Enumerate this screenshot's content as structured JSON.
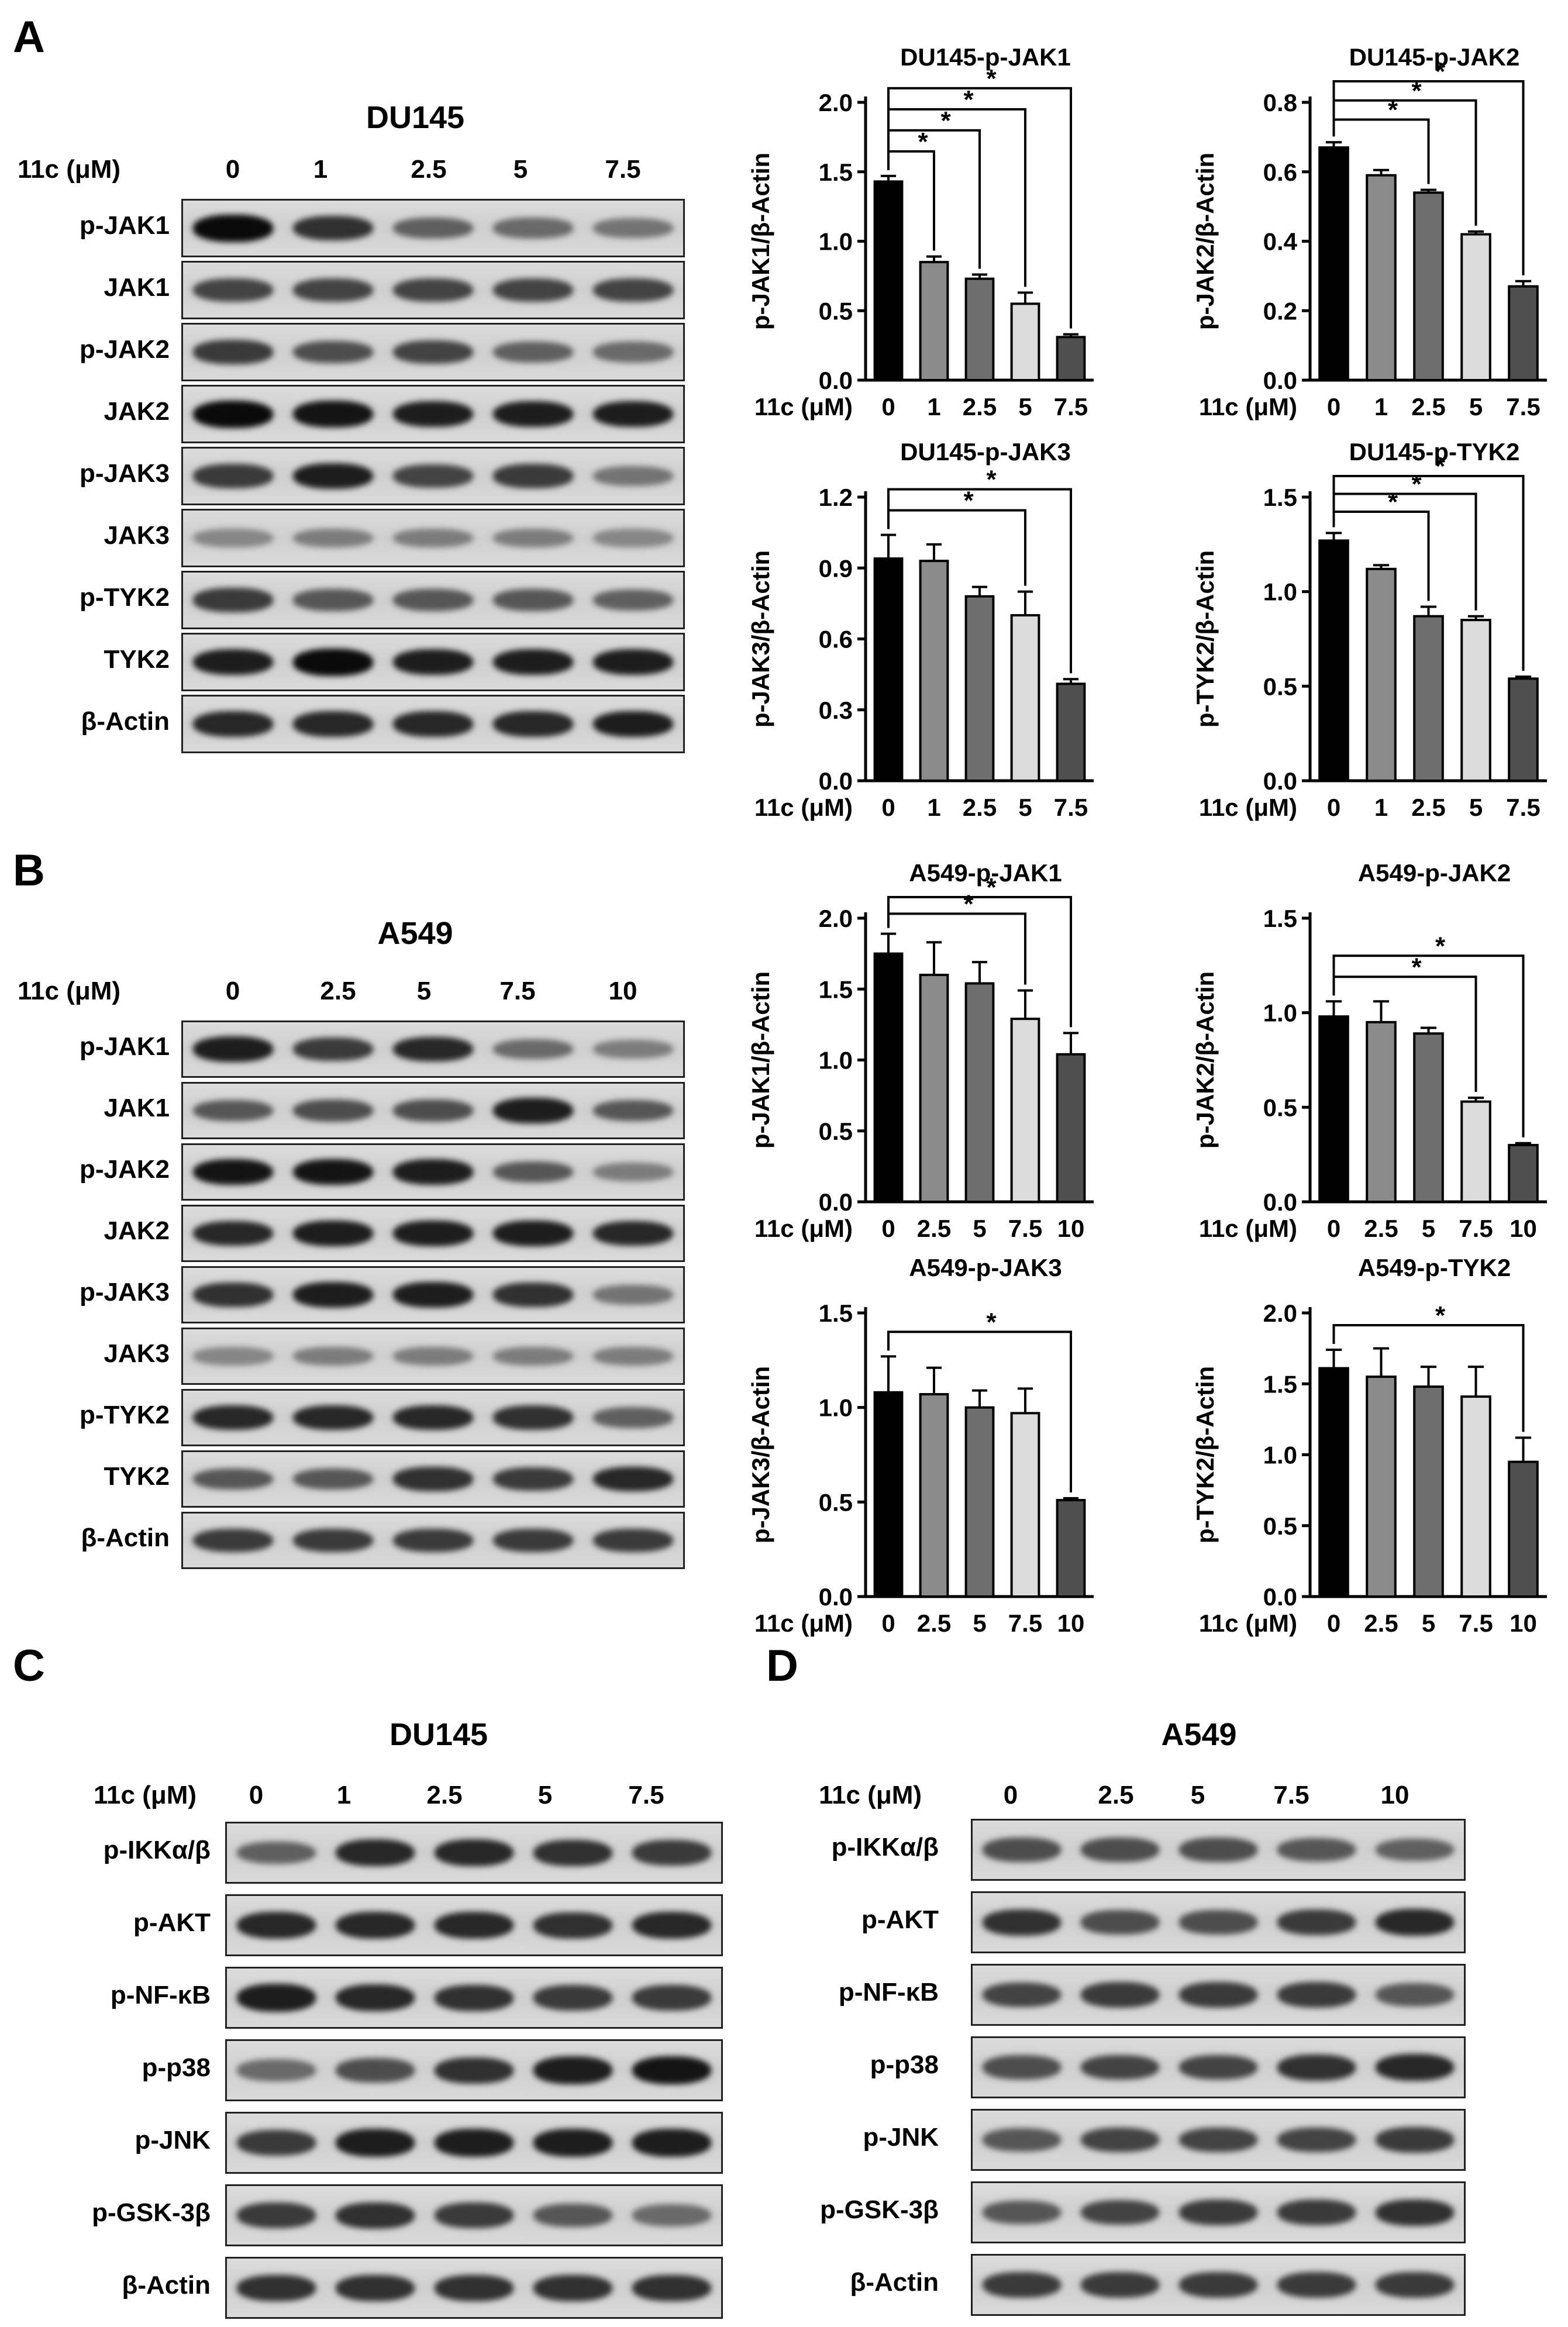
{
  "panels": {
    "A": {
      "letter": "A",
      "cell_line": "DU145",
      "dose_label": "11c (μM)",
      "doses": [
        "0",
        "1",
        "2.5",
        "5",
        "7.5"
      ],
      "blots": [
        {
          "label": "p-JAK1",
          "intensities": [
            1.0,
            0.8,
            0.55,
            0.5,
            0.45
          ]
        },
        {
          "label": "JAK1",
          "intensities": [
            0.7,
            0.7,
            0.7,
            0.7,
            0.7
          ]
        },
        {
          "label": "p-JAK2",
          "intensities": [
            0.75,
            0.65,
            0.7,
            0.55,
            0.5
          ]
        },
        {
          "label": "JAK2",
          "intensities": [
            1.0,
            0.95,
            0.9,
            0.9,
            0.9
          ]
        },
        {
          "label": "p-JAK3",
          "intensities": [
            0.75,
            0.9,
            0.7,
            0.75,
            0.45
          ]
        },
        {
          "label": "JAK3",
          "intensities": [
            0.35,
            0.4,
            0.4,
            0.4,
            0.35
          ]
        },
        {
          "label": "p-TYK2",
          "intensities": [
            0.75,
            0.6,
            0.6,
            0.6,
            0.55
          ]
        },
        {
          "label": "TYK2",
          "intensities": [
            0.9,
            1.0,
            0.9,
            0.9,
            0.9
          ]
        },
        {
          "label": "β-Actin",
          "intensities": [
            0.85,
            0.85,
            0.85,
            0.85,
            0.9
          ]
        }
      ]
    },
    "B": {
      "letter": "B",
      "cell_line": "A549",
      "dose_label": "11c (μM)",
      "doses": [
        "0",
        "2.5",
        "5",
        "7.5",
        "10"
      ],
      "blots": [
        {
          "label": "p-JAK1",
          "intensities": [
            0.9,
            0.75,
            0.85,
            0.5,
            0.4
          ]
        },
        {
          "label": "JAK1",
          "intensities": [
            0.6,
            0.65,
            0.65,
            0.9,
            0.6
          ]
        },
        {
          "label": "p-JAK2",
          "intensities": [
            0.95,
            0.95,
            0.9,
            0.6,
            0.4
          ]
        },
        {
          "label": "JAK2",
          "intensities": [
            0.85,
            0.9,
            0.9,
            0.9,
            0.85
          ]
        },
        {
          "label": "p-JAK3",
          "intensities": [
            0.8,
            0.9,
            0.9,
            0.8,
            0.45
          ]
        },
        {
          "label": "JAK3",
          "intensities": [
            0.35,
            0.4,
            0.4,
            0.4,
            0.4
          ]
        },
        {
          "label": "p-TYK2",
          "intensities": [
            0.85,
            0.85,
            0.85,
            0.8,
            0.55
          ]
        },
        {
          "label": "TYK2",
          "intensities": [
            0.6,
            0.6,
            0.8,
            0.75,
            0.85
          ]
        },
        {
          "label": "β-Actin",
          "intensities": [
            0.75,
            0.75,
            0.75,
            0.75,
            0.75
          ]
        }
      ]
    },
    "C": {
      "letter": "C",
      "cell_line": "DU145",
      "dose_label": "11c (μM)",
      "doses": [
        "0",
        "1",
        "2.5",
        "5",
        "7.5"
      ],
      "blots": [
        {
          "label": "p-IKKα/β",
          "intensities": [
            0.55,
            0.85,
            0.85,
            0.8,
            0.75
          ]
        },
        {
          "label": "p-AKT",
          "intensities": [
            0.85,
            0.85,
            0.85,
            0.8,
            0.85
          ]
        },
        {
          "label": "p-NF-κB",
          "intensities": [
            0.9,
            0.85,
            0.8,
            0.75,
            0.75
          ]
        },
        {
          "label": "p-p38",
          "intensities": [
            0.5,
            0.65,
            0.8,
            0.9,
            0.95
          ]
        },
        {
          "label": "p-JNK",
          "intensities": [
            0.75,
            0.9,
            0.9,
            0.9,
            0.9
          ]
        },
        {
          "label": "p-GSK-3β",
          "intensities": [
            0.75,
            0.8,
            0.75,
            0.6,
            0.5
          ]
        },
        {
          "label": "β-Actin",
          "intensities": [
            0.8,
            0.8,
            0.8,
            0.8,
            0.8
          ]
        }
      ]
    },
    "D": {
      "letter": "D",
      "cell_line": "A549",
      "dose_label": "11c (μM)",
      "doses": [
        "0",
        "2.5",
        "5",
        "7.5",
        "10"
      ],
      "blots": [
        {
          "label": "p-IKKα/β",
          "intensities": [
            0.65,
            0.65,
            0.65,
            0.6,
            0.55
          ]
        },
        {
          "label": "p-AKT",
          "intensities": [
            0.8,
            0.65,
            0.65,
            0.75,
            0.85
          ]
        },
        {
          "label": "p-NF-κB",
          "intensities": [
            0.7,
            0.75,
            0.75,
            0.75,
            0.6
          ]
        },
        {
          "label": "p-p38",
          "intensities": [
            0.65,
            0.7,
            0.7,
            0.8,
            0.85
          ]
        },
        {
          "label": "p-JNK",
          "intensities": [
            0.6,
            0.7,
            0.7,
            0.7,
            0.75
          ]
        },
        {
          "label": "p-GSK-3β",
          "intensities": [
            0.6,
            0.7,
            0.75,
            0.75,
            0.8
          ]
        },
        {
          "label": "β-Actin",
          "intensities": [
            0.75,
            0.75,
            0.75,
            0.75,
            0.75
          ]
        }
      ]
    }
  },
  "chart_data": [
    {
      "type": "bar",
      "title": "DU145-p-JAK1",
      "ylabel": "p-JAK1/β-Actin",
      "xlabel": "11c (μM)",
      "categories": [
        "0",
        "1",
        "2.5",
        "5",
        "7.5"
      ],
      "values": [
        1.43,
        0.85,
        0.73,
        0.55,
        0.31
      ],
      "errors": [
        0.04,
        0.04,
        0.03,
        0.08,
        0.02
      ],
      "ylim": [
        0,
        2.0
      ],
      "yticks": [
        "0.0",
        "0.5",
        "1.0",
        "1.5",
        "2.0"
      ],
      "significance": [
        1,
        2,
        3,
        4
      ],
      "bar_colors": [
        "#000000",
        "#8a8a8a",
        "#6e6e6e",
        "#dcdcdc",
        "#4f4f4f"
      ]
    },
    {
      "type": "bar",
      "title": "DU145-p-JAK2",
      "ylabel": "p-JAK2/β-Actin",
      "xlabel": "11c (μM)",
      "categories": [
        "0",
        "1",
        "2.5",
        "5",
        "7.5"
      ],
      "values": [
        0.67,
        0.59,
        0.54,
        0.42,
        0.27
      ],
      "errors": [
        0.015,
        0.015,
        0.008,
        0.008,
        0.015
      ],
      "ylim": [
        0,
        0.8
      ],
      "yticks": [
        "0.0",
        "0.2",
        "0.4",
        "0.6",
        "0.8"
      ],
      "significance": [
        2,
        3,
        4
      ],
      "bar_colors": [
        "#000000",
        "#8a8a8a",
        "#6e6e6e",
        "#dcdcdc",
        "#4f4f4f"
      ]
    },
    {
      "type": "bar",
      "title": "DU145-p-JAK3",
      "ylabel": "p-JAK3/β-Actin",
      "xlabel": "11c (μM)",
      "categories": [
        "0",
        "1",
        "2.5",
        "5",
        "7.5"
      ],
      "values": [
        0.94,
        0.93,
        0.78,
        0.7,
        0.41
      ],
      "errors": [
        0.1,
        0.07,
        0.04,
        0.1,
        0.02
      ],
      "ylim": [
        0,
        1.2
      ],
      "yticks": [
        "0.0",
        "0.3",
        "0.6",
        "0.9",
        "1.2"
      ],
      "significance": [
        3,
        4
      ],
      "bar_colors": [
        "#000000",
        "#8a8a8a",
        "#6e6e6e",
        "#dcdcdc",
        "#4f4f4f"
      ]
    },
    {
      "type": "bar",
      "title": "DU145-p-TYK2",
      "ylabel": "p-TYK2/β-Actin",
      "xlabel": "11c (μM)",
      "categories": [
        "0",
        "1",
        "2.5",
        "5",
        "7.5"
      ],
      "values": [
        1.27,
        1.12,
        0.87,
        0.85,
        0.54
      ],
      "errors": [
        0.04,
        0.02,
        0.05,
        0.02,
        0.01
      ],
      "ylim": [
        0,
        1.5
      ],
      "yticks": [
        "0.0",
        "0.5",
        "1.0",
        "1.5"
      ],
      "significance": [
        2,
        3,
        4
      ],
      "bar_colors": [
        "#000000",
        "#8a8a8a",
        "#6e6e6e",
        "#dcdcdc",
        "#4f4f4f"
      ]
    },
    {
      "type": "bar",
      "title": "A549-p-JAK1",
      "ylabel": "p-JAK1/β-Actin",
      "xlabel": "11c (μM)",
      "categories": [
        "0",
        "2.5",
        "5",
        "7.5",
        "10"
      ],
      "values": [
        1.75,
        1.6,
        1.54,
        1.29,
        1.04
      ],
      "errors": [
        0.14,
        0.23,
        0.15,
        0.2,
        0.15
      ],
      "ylim": [
        0,
        2.0
      ],
      "yticks": [
        "0.0",
        "0.5",
        "1.0",
        "1.5",
        "2.0"
      ],
      "significance": [
        3,
        4
      ],
      "bar_colors": [
        "#000000",
        "#8a8a8a",
        "#6e6e6e",
        "#dcdcdc",
        "#4f4f4f"
      ]
    },
    {
      "type": "bar",
      "title": "A549-p-JAK2",
      "ylabel": "p-JAK2/β-Actin",
      "xlabel": "11c (μM)",
      "categories": [
        "0",
        "2.5",
        "5",
        "7.5",
        "10"
      ],
      "values": [
        0.98,
        0.95,
        0.89,
        0.53,
        0.3
      ],
      "errors": [
        0.08,
        0.11,
        0.03,
        0.02,
        0.01
      ],
      "ylim": [
        0,
        1.5
      ],
      "yticks": [
        "0.0",
        "0.5",
        "1.0",
        "1.5"
      ],
      "significance": [
        3,
        4
      ],
      "bar_colors": [
        "#000000",
        "#8a8a8a",
        "#6e6e6e",
        "#dcdcdc",
        "#4f4f4f"
      ]
    },
    {
      "type": "bar",
      "title": "A549-p-JAK3",
      "ylabel": "p-JAK3/β-Actin",
      "xlabel": "11c (μM)",
      "categories": [
        "0",
        "2.5",
        "5",
        "7.5",
        "10"
      ],
      "values": [
        1.08,
        1.07,
        1.0,
        0.97,
        0.51
      ],
      "errors": [
        0.19,
        0.14,
        0.09,
        0.13,
        0.01
      ],
      "ylim": [
        0,
        1.5
      ],
      "yticks": [
        "0.0",
        "0.5",
        "1.0",
        "1.5"
      ],
      "significance": [
        4
      ],
      "bar_colors": [
        "#000000",
        "#8a8a8a",
        "#6e6e6e",
        "#dcdcdc",
        "#4f4f4f"
      ]
    },
    {
      "type": "bar",
      "title": "A549-p-TYK2",
      "ylabel": "p-TYK2/β-Actin",
      "xlabel": "11c (μM)",
      "categories": [
        "0",
        "2.5",
        "5",
        "7.5",
        "10"
      ],
      "values": [
        1.61,
        1.55,
        1.48,
        1.41,
        0.95
      ],
      "errors": [
        0.13,
        0.2,
        0.14,
        0.21,
        0.17
      ],
      "ylim": [
        0,
        2.0
      ],
      "yticks": [
        "0.0",
        "0.5",
        "1.0",
        "1.5",
        "2.0"
      ],
      "significance": [
        4
      ],
      "bar_colors": [
        "#000000",
        "#8a8a8a",
        "#6e6e6e",
        "#dcdcdc",
        "#4f4f4f"
      ]
    }
  ],
  "significance_symbol": "*"
}
